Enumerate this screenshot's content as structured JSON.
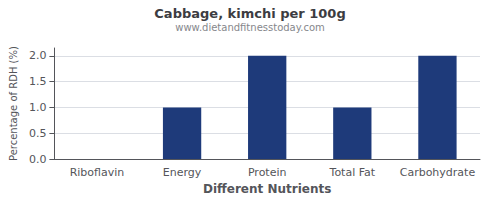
{
  "chart_data": {
    "type": "bar",
    "title": "Cabbage, kimchi per 100g",
    "subtitle": "www.dietandfitnesstoday.com",
    "xlabel": "Different Nutrients",
    "ylabel": "Percentage of RDH (%)",
    "categories": [
      "Riboflavin",
      "Energy",
      "Protein",
      "Total Fat",
      "Carbohydrate"
    ],
    "values": [
      0.0,
      1.0,
      2.0,
      1.0,
      2.0
    ],
    "color": "#1e3a7a",
    "ylim": [
      0,
      2.15
    ],
    "yticks": [
      {
        "value": 0.0,
        "label": "0.0"
      },
      {
        "value": 0.5,
        "label": "0.5"
      },
      {
        "value": 1.0,
        "label": "1.0"
      },
      {
        "value": 1.5,
        "label": "1.5"
      },
      {
        "value": 2.0,
        "label": "2.0"
      }
    ],
    "grid": true
  }
}
